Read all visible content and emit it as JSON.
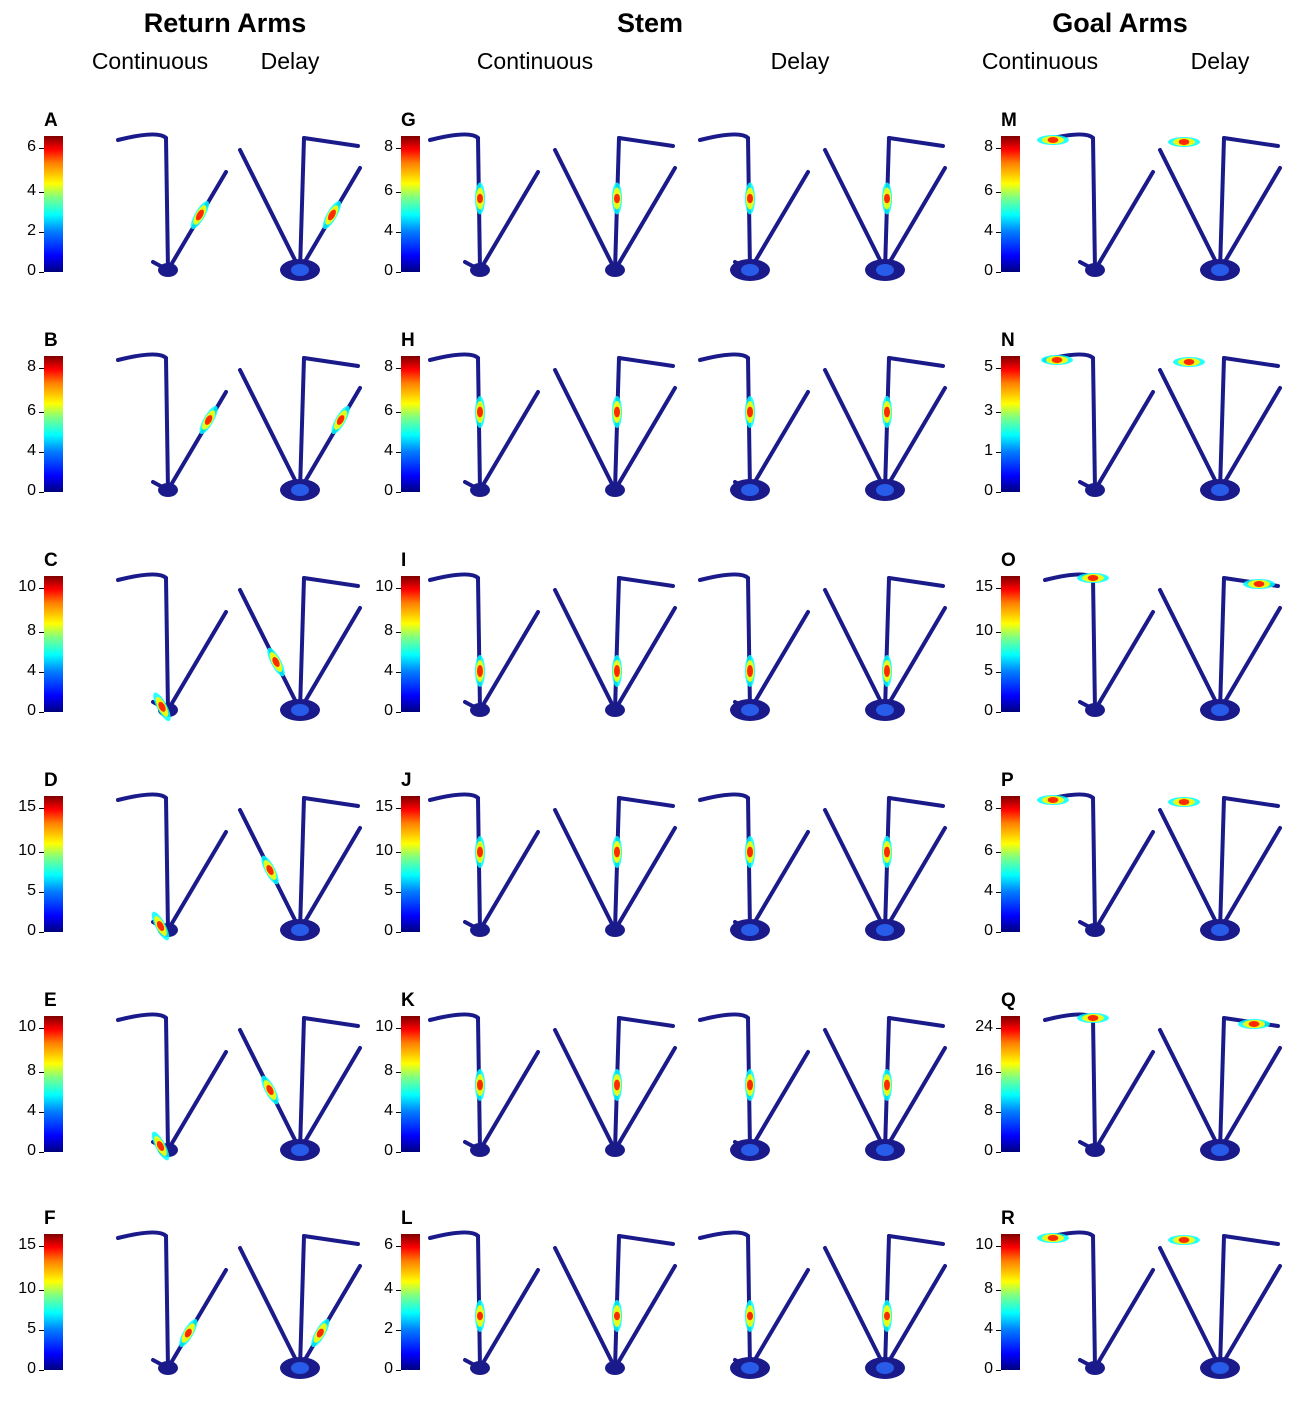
{
  "header": {
    "groups": [
      {
        "title": "Return Arms",
        "subtitles": [
          "Continuous",
          "Delay"
        ]
      },
      {
        "title": "Stem",
        "subtitles": [
          "Continuous",
          "Delay"
        ]
      },
      {
        "title": "Goal Arms",
        "subtitles": [
          "Continuous",
          "Delay"
        ]
      }
    ]
  },
  "colors": {
    "trajectory": "#1a1a8a",
    "cmap": [
      "#00007f",
      "#0000ff",
      "#00ffff",
      "#ffff00",
      "#ff0000",
      "#7f0000"
    ]
  },
  "panels": [
    {
      "letter": "A",
      "ticks": [
        "6",
        "4",
        "2",
        "0"
      ],
      "group": "return",
      "hot": "return-right",
      "pos": 0.55,
      "peak": 1.0
    },
    {
      "letter": "B",
      "ticks": [
        "8",
        "6",
        "4",
        "0"
      ],
      "group": "return",
      "hot": "return-right",
      "pos": 0.7,
      "peak": 0.9
    },
    {
      "letter": "C",
      "ticks": [
        "10",
        "8",
        "4",
        "0"
      ],
      "group": "return",
      "hot": "return-left",
      "pos": 0.6,
      "peak": 0.9
    },
    {
      "letter": "D",
      "ticks": [
        "15",
        "10",
        "5",
        "0"
      ],
      "group": "return",
      "hot": "return-left",
      "pos": 0.5,
      "peak": 0.9
    },
    {
      "letter": "E",
      "ticks": [
        "10",
        "8",
        "4",
        "0"
      ],
      "group": "return",
      "hot": "return-left",
      "pos": 0.5,
      "peak": 0.9
    },
    {
      "letter": "F",
      "ticks": [
        "15",
        "10",
        "5",
        "0"
      ],
      "group": "return",
      "hot": "return-right",
      "pos": 0.35,
      "peak": 0.8
    },
    {
      "letter": "G",
      "ticks": [
        "8",
        "6",
        "4",
        "0"
      ],
      "group": "stem",
      "hot": "stem",
      "pos": 0.55,
      "peak": 0.8
    },
    {
      "letter": "H",
      "ticks": [
        "8",
        "6",
        "4",
        "0"
      ],
      "group": "stem",
      "hot": "stem",
      "pos": 0.6,
      "peak": 0.9
    },
    {
      "letter": "I",
      "ticks": [
        "10",
        "8",
        "4",
        "0"
      ],
      "group": "stem",
      "hot": "stem",
      "pos": 0.3,
      "peak": 1.0
    },
    {
      "letter": "J",
      "ticks": [
        "15",
        "10",
        "5",
        "0"
      ],
      "group": "stem",
      "hot": "stem",
      "pos": 0.6,
      "peak": 0.9
    },
    {
      "letter": "K",
      "ticks": [
        "10",
        "8",
        "4",
        "0"
      ],
      "group": "stem",
      "hot": "stem",
      "pos": 0.5,
      "peak": 0.9
    },
    {
      "letter": "L",
      "ticks": [
        "6",
        "4",
        "2",
        "0"
      ],
      "group": "stem",
      "hot": "stem",
      "pos": 0.4,
      "peak": 0.7
    },
    {
      "letter": "M",
      "ticks": [
        "8",
        "6",
        "4",
        "0"
      ],
      "group": "goal",
      "hot": "goal-left",
      "pos": 0.8,
      "peak": 0.9
    },
    {
      "letter": "N",
      "ticks": [
        "5",
        "3",
        "1",
        "0"
      ],
      "group": "goal",
      "hot": "goal-left",
      "pos": 0.7,
      "peak": 0.9
    },
    {
      "letter": "O",
      "ticks": [
        "15",
        "10",
        "5",
        "0"
      ],
      "group": "goal",
      "hot": "goal-right",
      "pos": 0.7,
      "peak": 0.9
    },
    {
      "letter": "P",
      "ticks": [
        "8",
        "6",
        "4",
        "0"
      ],
      "group": "goal",
      "hot": "goal-left",
      "pos": 0.8,
      "peak": 0.9
    },
    {
      "letter": "Q",
      "ticks": [
        "24",
        "16",
        "8",
        "0"
      ],
      "group": "goal",
      "hot": "goal-right",
      "pos": 0.6,
      "peak": 0.9
    },
    {
      "letter": "R",
      "ticks": [
        "10",
        "8",
        "4",
        "0"
      ],
      "group": "goal",
      "hot": "goal-left",
      "pos": 0.8,
      "peak": 0.9
    }
  ]
}
